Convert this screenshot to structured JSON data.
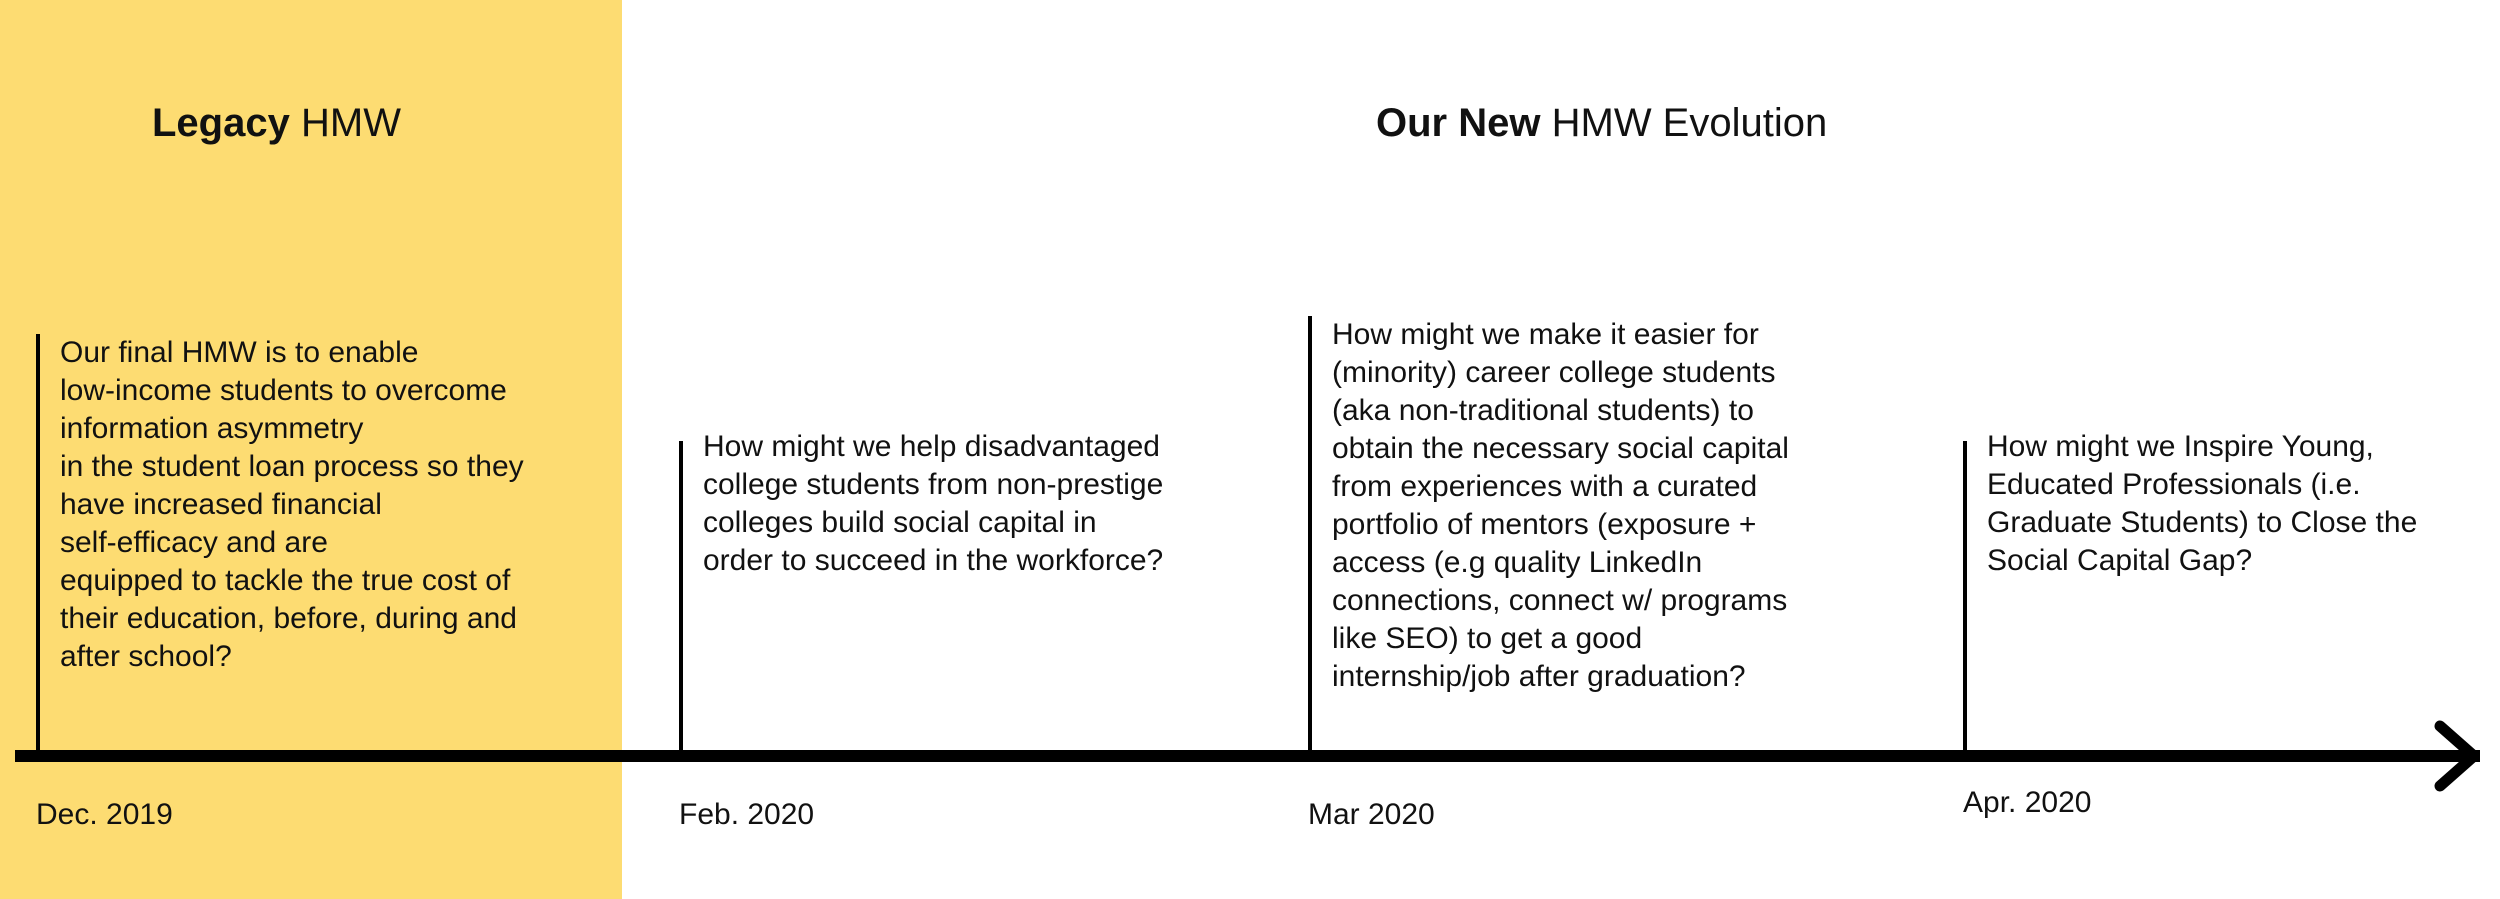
{
  "headings": {
    "legacy": {
      "bold": "Legacy",
      "rest": "HMW"
    },
    "new": {
      "bold": "Our New",
      "rest": "HMW Evolution"
    }
  },
  "timeline": [
    {
      "date": "Dec. 2019",
      "lines": [
        "Our final HMW is to enable",
        "low-income students to overcome",
        "information asymmetry",
        "in the student loan process so they",
        "have increased financial",
        "self-efficacy and are",
        "equipped to tackle the true cost of",
        "their education, before, during and",
        "after school?"
      ]
    },
    {
      "date": "Feb. 2020",
      "lines": [
        "How might we help disadvantaged",
        "college students from non-prestige",
        "colleges build social capital in",
        "order to succeed in the workforce?"
      ]
    },
    {
      "date": "Mar 2020",
      "lines": [
        "How might we make it easier for",
        "(minority) career college students",
        "(aka non-traditional students) to",
        "obtain the necessary social capital",
        "from experiences with a curated",
        "portfolio of mentors (exposure +",
        "access (e.g quality LinkedIn",
        "connections, connect w/ programs",
        "like SEO) to get a good",
        "internship/job after graduation?"
      ]
    },
    {
      "date": "Apr. 2020",
      "lines": [
        "How might we Inspire Young,",
        "Educated Professionals (i.e.",
        "Graduate Students) to Close the",
        "Social Capital Gap?"
      ]
    }
  ],
  "colors": {
    "legacy_panel": "#FDDC72",
    "line": "#000000"
  }
}
